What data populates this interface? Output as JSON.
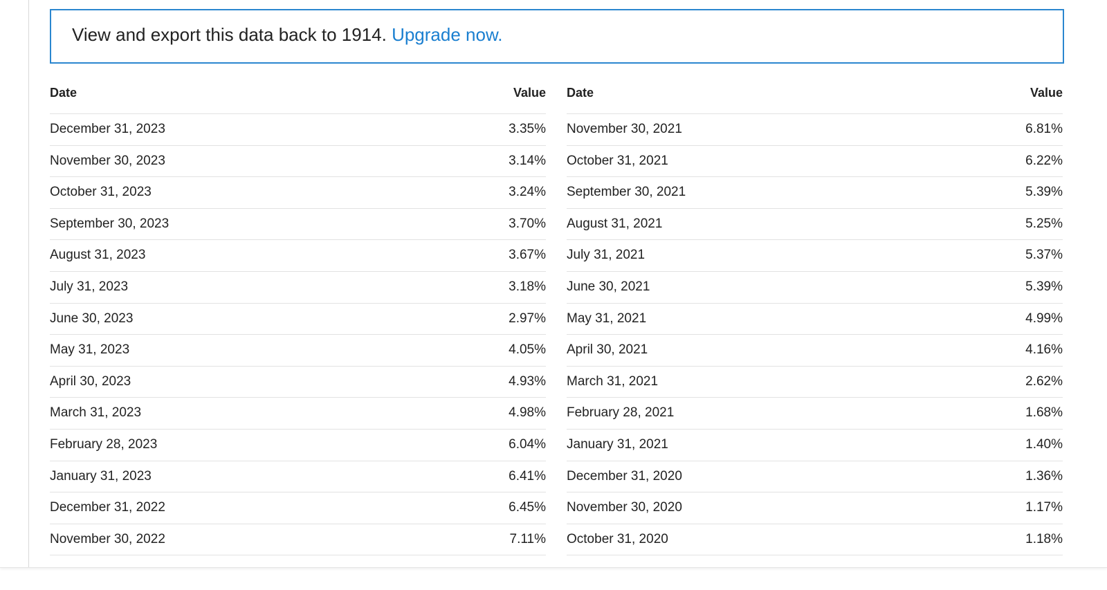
{
  "banner": {
    "text": "View and export this data back to 1914.",
    "link": "Upgrade now."
  },
  "tables": [
    {
      "headers": [
        "Date",
        "Value"
      ],
      "rows": [
        [
          "December 31, 2023",
          "3.35%"
        ],
        [
          "November 30, 2023",
          "3.14%"
        ],
        [
          "October 31, 2023",
          "3.24%"
        ],
        [
          "September 30, 2023",
          "3.70%"
        ],
        [
          "August 31, 2023",
          "3.67%"
        ],
        [
          "July 31, 2023",
          "3.18%"
        ],
        [
          "June 30, 2023",
          "2.97%"
        ],
        [
          "May 31, 2023",
          "4.05%"
        ],
        [
          "April 30, 2023",
          "4.93%"
        ],
        [
          "March 31, 2023",
          "4.98%"
        ],
        [
          "February 28, 2023",
          "6.04%"
        ],
        [
          "January 31, 2023",
          "6.41%"
        ],
        [
          "December 31, 2022",
          "6.45%"
        ],
        [
          "November 30, 2022",
          "7.11%"
        ]
      ]
    },
    {
      "headers": [
        "Date",
        "Value"
      ],
      "rows": [
        [
          "November 30, 2021",
          "6.81%"
        ],
        [
          "October 31, 2021",
          "6.22%"
        ],
        [
          "September 30, 2021",
          "5.39%"
        ],
        [
          "August 31, 2021",
          "5.25%"
        ],
        [
          "July 31, 2021",
          "5.37%"
        ],
        [
          "June 30, 2021",
          "5.39%"
        ],
        [
          "May 31, 2021",
          "4.99%"
        ],
        [
          "April 30, 2021",
          "4.16%"
        ],
        [
          "March 31, 2021",
          "2.62%"
        ],
        [
          "February 28, 2021",
          "1.68%"
        ],
        [
          "January 31, 2021",
          "1.40%"
        ],
        [
          "December 31, 2020",
          "1.36%"
        ],
        [
          "November 30, 2020",
          "1.17%"
        ],
        [
          "October 31, 2020",
          "1.18%"
        ]
      ]
    }
  ]
}
